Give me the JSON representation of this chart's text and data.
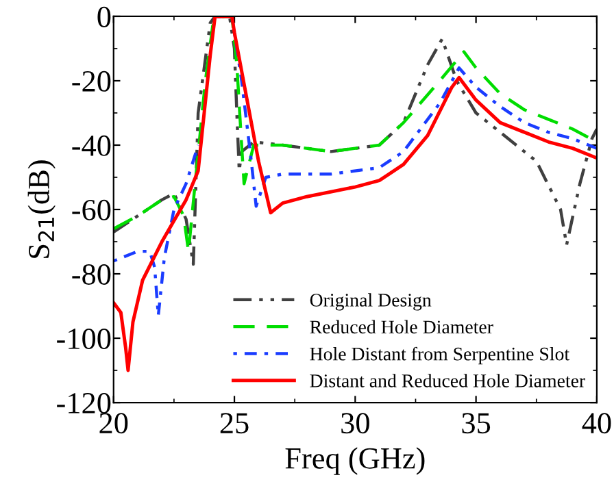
{
  "chart_data": {
    "type": "line",
    "xlabel": "Freq (GHz)",
    "ylabel": "S$_{21}$(dB)",
    "xlim": [
      20,
      40
    ],
    "xticks": [
      20,
      25,
      30,
      35,
      40
    ],
    "ylim": [
      -120,
      0
    ],
    "yticks": [
      -120,
      -100,
      -80,
      -60,
      -40,
      -20,
      0
    ],
    "grid": false,
    "legend": "bottom right",
    "marker": "none",
    "series": [
      {
        "name": "Original Design",
        "color": "#404040",
        "line_style": "dashdot",
        "x": [
          20,
          21,
          22,
          22.5,
          23,
          23.3,
          23.5,
          24.0,
          24.2,
          24.8,
          25.0,
          25.1,
          25.2,
          25.3,
          25.8,
          27,
          29,
          31,
          32,
          33,
          33.6,
          34.2,
          35,
          36,
          37.5,
          38.5,
          38.75,
          39.3,
          39.8,
          40
        ],
        "values": [
          -67,
          -62,
          -57,
          -55,
          -63,
          -77,
          -30,
          -2,
          0,
          0,
          -10,
          -30,
          -48,
          -42,
          -39,
          -40,
          -42,
          -40,
          -33,
          -15,
          -7,
          -20,
          -30,
          -36,
          -45,
          -60,
          -71,
          -52,
          -38,
          -35
        ]
      },
      {
        "name": "Reduced Hole Diameter",
        "color": "#00dd00",
        "line_style": "dashed",
        "x": [
          20,
          21,
          22,
          22.5,
          22.9,
          23.1,
          23.4,
          23.8,
          24.1,
          24.3,
          24.9,
          25.1,
          25.3,
          25.4,
          25.8,
          27,
          29,
          31,
          32,
          33.5,
          34.5,
          35,
          36,
          37,
          38,
          39,
          40
        ],
        "values": [
          -66,
          -62,
          -57,
          -56,
          -62,
          -73,
          -50,
          -20,
          -3,
          0,
          0,
          -15,
          -40,
          -52,
          -40,
          -40,
          -42,
          -40,
          -33,
          -20,
          -11,
          -16,
          -24,
          -29,
          -32,
          -35,
          -39
        ]
      },
      {
        "name": "Hole Distant from Serpentine Slot",
        "color": "#1a3cff",
        "line_style": "dotted",
        "x": [
          20,
          21,
          21.5,
          21.7,
          21.85,
          22.1,
          22.5,
          23,
          23.5,
          24,
          24.3,
          24.9,
          25.3,
          25.7,
          25.9,
          26.3,
          27,
          29,
          31,
          32,
          33.5,
          34.3,
          35,
          36,
          37,
          38,
          39,
          40
        ],
        "values": [
          -76,
          -73,
          -73,
          -78,
          -93,
          -75,
          -60,
          -52,
          -40,
          null,
          0,
          0,
          -20,
          -45,
          -59,
          -50,
          -49,
          -49,
          -47,
          -42,
          -27,
          -16,
          -22,
          -28,
          -33,
          -36,
          -38,
          -41
        ]
      },
      {
        "name": "Distant and Reduced Hole Diameter",
        "color": "#ff0000",
        "line_style": "solid",
        "x": [
          20,
          20.3,
          20.5,
          20.6,
          20.8,
          21.2,
          22,
          23,
          23.5,
          24,
          24.2,
          24.9,
          25.0,
          25.5,
          26.0,
          26.5,
          27,
          28,
          30,
          31,
          32,
          33,
          34,
          34.3,
          35,
          36,
          37,
          38,
          39,
          40
        ],
        "values": [
          -89,
          -92,
          -103,
          -110,
          -95,
          -82,
          -70,
          -57,
          -48,
          -12,
          0,
          0,
          -5,
          -25,
          -45,
          -61,
          -58,
          -56,
          -53,
          -51,
          -46,
          -37,
          -22,
          -19,
          -26,
          -33,
          -36,
          -39,
          -41,
          -44
        ]
      }
    ]
  }
}
